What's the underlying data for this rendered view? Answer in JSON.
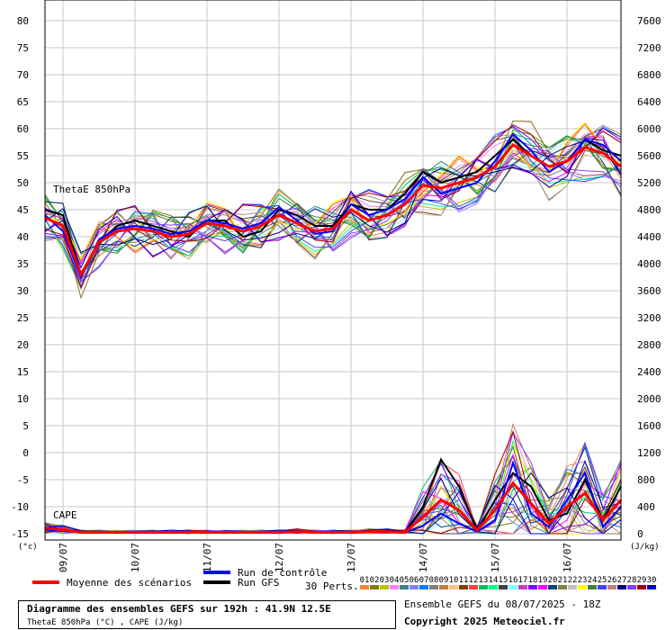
{
  "chart_data": {
    "type": "line",
    "title": "Diagramme des ensembles GEFS sur 192h : 41.9N 12.5E",
    "subtitle": "ThetaE 850hPa (°C) , CAPE (J/kg)",
    "run_info": "Ensemble GEFS du 08/07/2025 - 18Z",
    "copyright": "Copyright 2025 Meteociel.fr",
    "left_axis": {
      "unit_label": "(°c)",
      "ylim": [
        -15,
        80
      ],
      "ticks": [
        "80",
        "75",
        "70",
        "65",
        "60",
        "55",
        "50",
        "45",
        "40",
        "35",
        "30",
        "25",
        "20",
        "15",
        "10",
        "5",
        "0",
        "-5",
        "-10",
        "-15"
      ]
    },
    "right_axis": {
      "unit_label": "(J/kg)",
      "ylim": [
        0,
        7600
      ],
      "ticks": [
        "7600",
        "7200",
        "6800",
        "6400",
        "6000",
        "5600",
        "5200",
        "4800",
        "4400",
        "4000",
        "3600",
        "3200",
        "2800",
        "2400",
        "2000",
        "1600",
        "1200",
        "800",
        "400",
        "0"
      ]
    },
    "x_axis": {
      "tick_labels": [
        "09/07",
        "10/07",
        "11/07",
        "12/07",
        "13/07",
        "14/07",
        "15/07",
        "16/07"
      ]
    },
    "panel_labels": {
      "thetae": "ThetaE 850hPa",
      "cape": "CAPE"
    },
    "time_steps_hours": [
      0,
      6,
      12,
      18,
      24,
      30,
      36,
      42,
      48,
      54,
      60,
      66,
      72,
      78,
      84,
      90,
      96,
      102,
      108,
      114,
      120,
      126,
      132,
      138,
      144,
      150,
      156,
      162,
      168,
      174,
      180,
      186,
      192
    ],
    "series": [
      {
        "name": "Moyenne des scénarios",
        "kind": "mean",
        "color": "#ff0000",
        "thetae": [
          43.5,
          42,
          33,
          39,
          41,
          41.5,
          41,
          40,
          40.5,
          42.5,
          42,
          41,
          42,
          44,
          42.5,
          41,
          41.5,
          45,
          43,
          44,
          46,
          49.5,
          49,
          50,
          51,
          53,
          57,
          55,
          53,
          54,
          56.5,
          55.5,
          53
        ],
        "cape": [
          80,
          60,
          20,
          20,
          20,
          20,
          20,
          20,
          20,
          20,
          20,
          20,
          20,
          20,
          30,
          20,
          20,
          20,
          30,
          30,
          20,
          250,
          500,
          350,
          50,
          350,
          750,
          450,
          150,
          400,
          600,
          200,
          500
        ]
      },
      {
        "name": "Run de contrôle",
        "kind": "control",
        "color": "#0000ff",
        "thetae": [
          44,
          41,
          32.5,
          39.5,
          41.5,
          42,
          41.5,
          40.5,
          41,
          43,
          42.5,
          41.5,
          42.5,
          45.5,
          43,
          40.5,
          41,
          46,
          44,
          45,
          47,
          51,
          48,
          49,
          50,
          54,
          59,
          56,
          52,
          54,
          58,
          57,
          54
        ],
        "cape": [
          60,
          40,
          20,
          20,
          20,
          20,
          20,
          20,
          20,
          20,
          20,
          20,
          20,
          20,
          20,
          20,
          20,
          20,
          20,
          20,
          20,
          120,
          300,
          150,
          30,
          200,
          1050,
          300,
          100,
          500,
          900,
          100,
          400
        ]
      },
      {
        "name": "Run GFS",
        "kind": "gfs",
        "color": "#000000",
        "thetae": [
          45,
          44,
          33,
          39,
          42,
          43,
          42,
          41,
          40,
          43,
          43,
          40,
          41,
          45,
          44,
          42,
          42,
          46,
          45,
          45,
          48,
          52,
          50,
          51,
          52,
          55,
          58,
          55,
          53,
          54,
          58,
          56,
          55
        ],
        "cape": [
          80,
          50,
          20,
          20,
          20,
          20,
          20,
          20,
          20,
          20,
          20,
          20,
          20,
          20,
          20,
          20,
          20,
          20,
          20,
          20,
          20,
          400,
          1100,
          700,
          40,
          500,
          900,
          700,
          200,
          300,
          800,
          200,
          700
        ]
      }
    ],
    "perturbation_count": "30 Perts.",
    "perturbation_labels": [
      "01",
      "02",
      "03",
      "04",
      "05",
      "06",
      "07",
      "08",
      "09",
      "10",
      "11",
      "12",
      "13",
      "14",
      "15",
      "16",
      "17",
      "18",
      "19",
      "20",
      "21",
      "22",
      "23",
      "24",
      "25",
      "26",
      "27",
      "28",
      "29",
      "30"
    ],
    "perturbation_colors": [
      "#ff8040",
      "#808000",
      "#c0c000",
      "#ff80ff",
      "#408080",
      "#8080ff",
      "#0080ff",
      "#808080",
      "#c08040",
      "#ffc080",
      "#804000",
      "#ff4040",
      "#00c060",
      "#00ff80",
      "#404040",
      "#80ffff",
      "#c040c0",
      "#8000ff",
      "#ff00ff",
      "#004080",
      "#808040",
      "#c0c0c0",
      "#ffff00",
      "#408040",
      "#4040ff",
      "#c08080",
      "#000080",
      "#8040ff",
      "#a00000",
      "#0000c0"
    ],
    "grid": true
  }
}
